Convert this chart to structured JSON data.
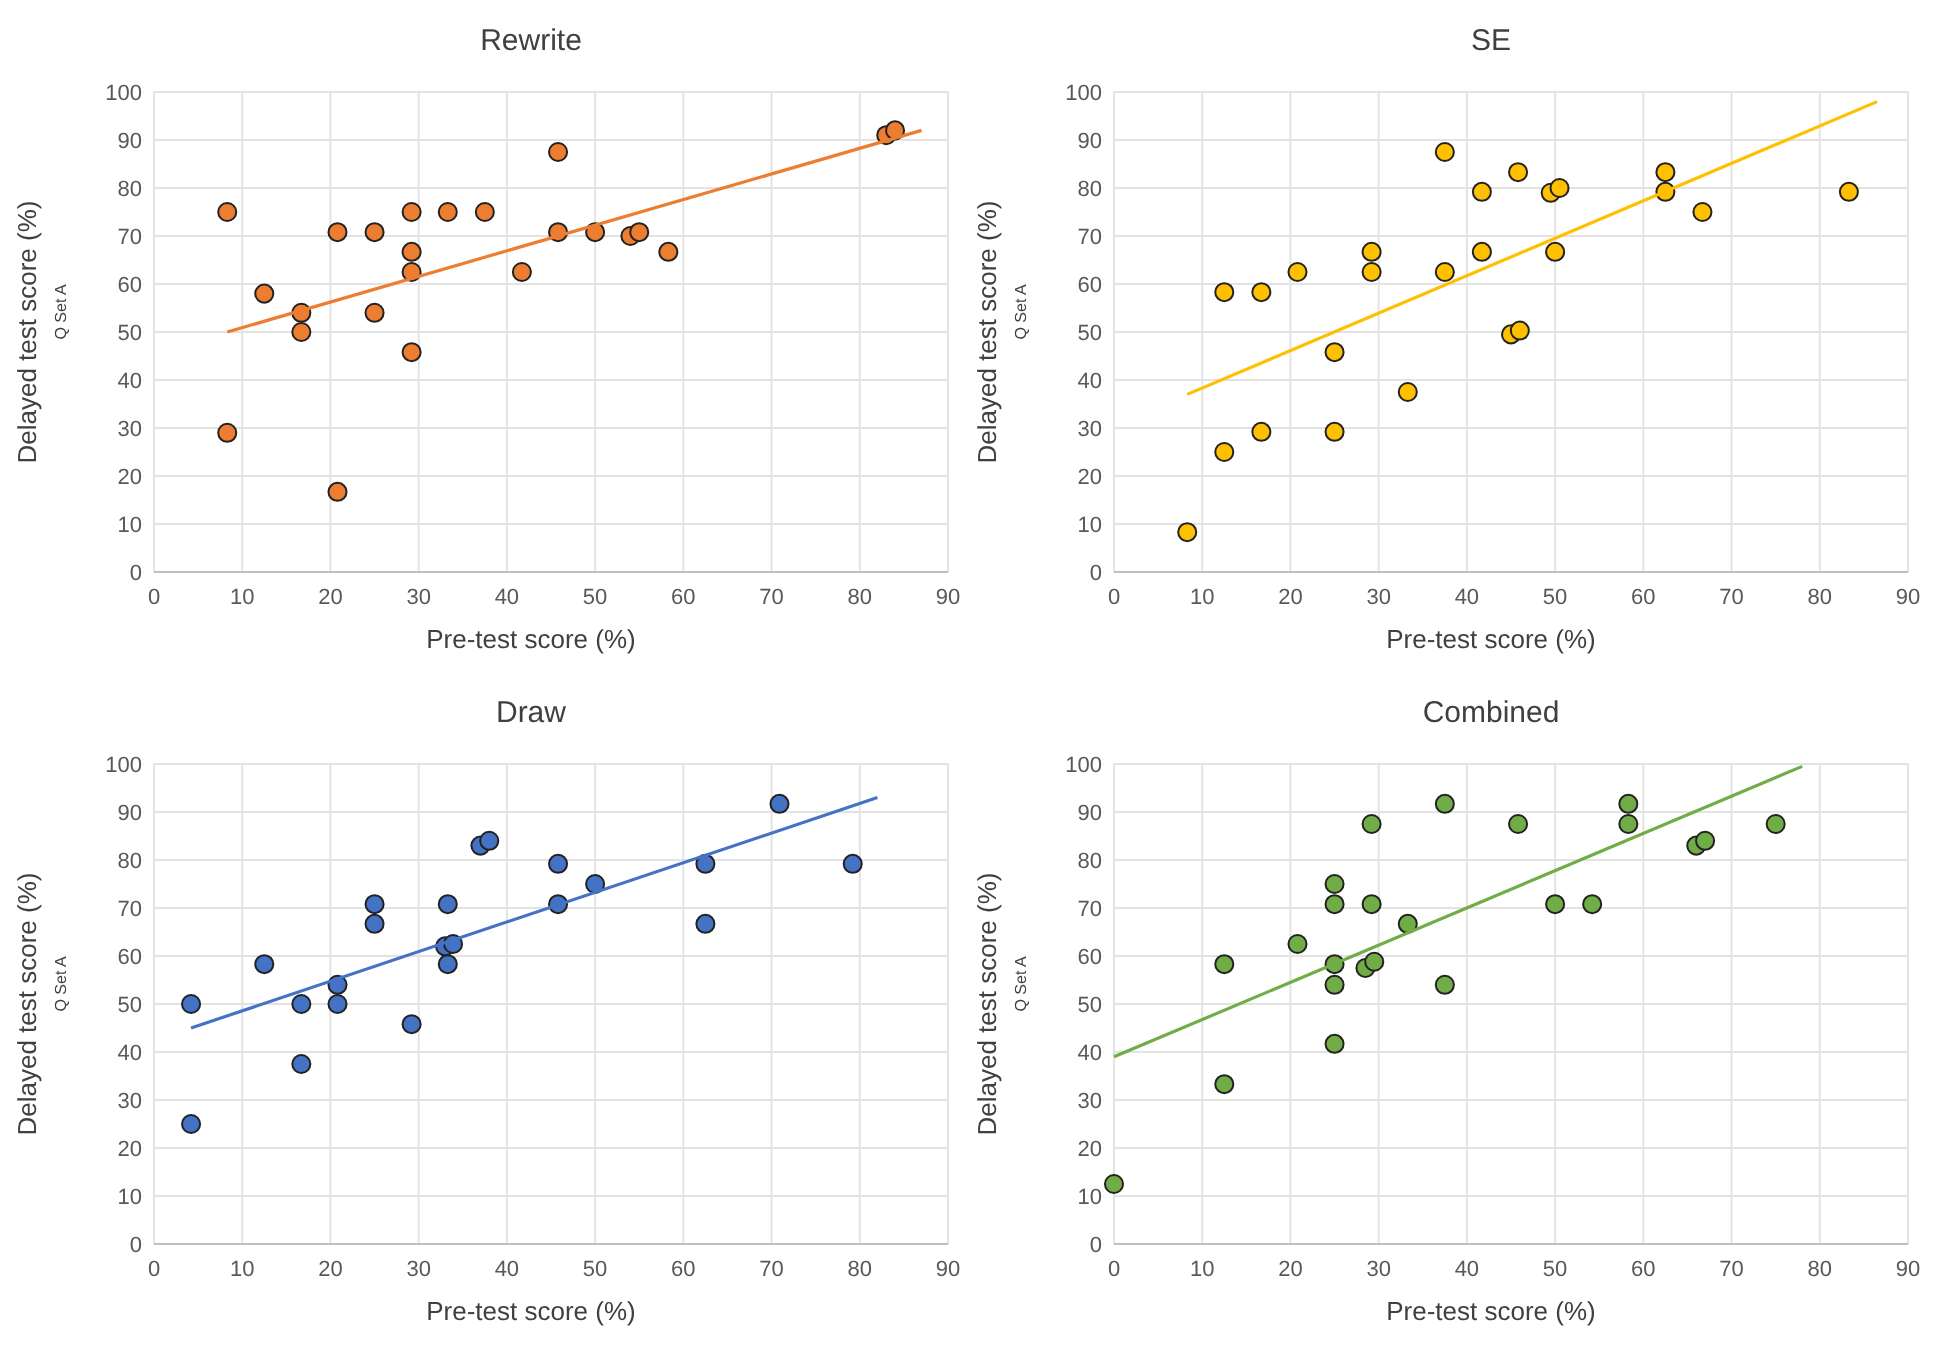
{
  "chart_data": [
    {
      "type": "scatter",
      "title": "Rewrite",
      "xlabel": "Pre-test score (%)",
      "ylabel": "Delayed test score (%)",
      "annotations": [
        "Q Set A"
      ],
      "xlim": [
        0,
        90
      ],
      "ylim": [
        0,
        100
      ],
      "xticks": [
        0,
        10,
        20,
        30,
        40,
        50,
        60,
        70,
        80,
        90
      ],
      "yticks": [
        0,
        10,
        20,
        30,
        40,
        50,
        60,
        70,
        80,
        90,
        100
      ],
      "grid": true,
      "series": [
        {
          "marker": "circle",
          "color": "#ed7d31",
          "x": [
            8.3,
            8.3,
            12.5,
            16.7,
            16.7,
            20.8,
            20.8,
            25,
            25,
            29.2,
            29.2,
            29.2,
            29.2,
            33.3,
            37.5,
            41.7,
            45.8,
            45.8,
            50,
            54,
            55,
            58.3,
            83,
            84
          ],
          "values": [
            75,
            29,
            58,
            54,
            50,
            70.8,
            16.7,
            70.8,
            54,
            75,
            66.7,
            62.5,
            45.8,
            75,
            75,
            62.5,
            87.5,
            70.8,
            70.8,
            70,
            70.8,
            66.7,
            91,
            92
          ]
        },
        {
          "type": "line",
          "color": "#ed7d31",
          "x": [
            8.3,
            87
          ],
          "values": [
            50,
            92
          ]
        }
      ]
    },
    {
      "type": "scatter",
      "title": "SE",
      "xlabel": "Pre-test score (%)",
      "ylabel": "Delayed test score (%)",
      "annotations": [
        "Q Set A"
      ],
      "xlim": [
        0,
        90
      ],
      "ylim": [
        0,
        100
      ],
      "xticks": [
        0,
        10,
        20,
        30,
        40,
        50,
        60,
        70,
        80,
        90
      ],
      "yticks": [
        0,
        10,
        20,
        30,
        40,
        50,
        60,
        70,
        80,
        90,
        100
      ],
      "grid": true,
      "series": [
        {
          "marker": "circle",
          "color": "#ffc000",
          "x": [
            8.3,
            12.5,
            12.5,
            16.7,
            16.7,
            20.8,
            25,
            25,
            29.2,
            29.2,
            33.3,
            37.5,
            37.5,
            41.7,
            41.7,
            45,
            45.8,
            46,
            49.5,
            50,
            50.5,
            62.5,
            62.5,
            66.7,
            83.3
          ],
          "values": [
            8.3,
            58.3,
            25,
            58.3,
            29.2,
            62.5,
            45.8,
            29.2,
            66.7,
            62.5,
            37.5,
            87.5,
            62.5,
            79.2,
            66.7,
            49.5,
            83.3,
            50.3,
            79,
            66.7,
            80,
            83.3,
            79.2,
            75,
            79.2
          ]
        },
        {
          "type": "line",
          "color": "#ffc000",
          "x": [
            8.3,
            86.5
          ],
          "values": [
            37,
            98
          ]
        }
      ]
    },
    {
      "type": "scatter",
      "title": "Draw",
      "xlabel": "Pre-test score (%)",
      "ylabel": "Delayed test score (%)",
      "annotations": [
        "Q Set A"
      ],
      "xlim": [
        0,
        90
      ],
      "ylim": [
        0,
        100
      ],
      "xticks": [
        0,
        10,
        20,
        30,
        40,
        50,
        60,
        70,
        80,
        90
      ],
      "yticks": [
        0,
        10,
        20,
        30,
        40,
        50,
        60,
        70,
        80,
        90,
        100
      ],
      "grid": true,
      "series": [
        {
          "marker": "circle",
          "color": "#4472c4",
          "x": [
            4.2,
            4.2,
            12.5,
            16.7,
            16.7,
            20.8,
            20.8,
            25,
            25,
            29.2,
            33,
            33.9,
            33.3,
            33.3,
            37,
            38,
            45.8,
            45.8,
            50,
            62.5,
            62.5,
            70.9,
            79.2
          ],
          "values": [
            50,
            25,
            58.3,
            50,
            37.5,
            54,
            50,
            70.8,
            66.7,
            45.8,
            62,
            62.5,
            70.8,
            58.3,
            83,
            84,
            79.2,
            70.8,
            75,
            79.2,
            66.7,
            91.7,
            79.2
          ]
        },
        {
          "type": "line",
          "color": "#4472c4",
          "x": [
            4.2,
            82
          ],
          "values": [
            45,
            93
          ]
        }
      ]
    },
    {
      "type": "scatter",
      "title": "Combined",
      "xlabel": "Pre-test score (%)",
      "ylabel": "Delayed test score (%)",
      "annotations": [
        "Q Set A"
      ],
      "xlim": [
        0,
        90
      ],
      "ylim": [
        0,
        100
      ],
      "xticks": [
        0,
        10,
        20,
        30,
        40,
        50,
        60,
        70,
        80,
        90
      ],
      "yticks": [
        0,
        10,
        20,
        30,
        40,
        50,
        60,
        70,
        80,
        90,
        100
      ],
      "grid": true,
      "series": [
        {
          "marker": "circle",
          "color": "#70ad47",
          "x": [
            0,
            12.5,
            12.5,
            20.8,
            25,
            25,
            25,
            25,
            25,
            29.2,
            29.2,
            28.5,
            29.5,
            33.3,
            37.5,
            37.5,
            45.8,
            50,
            54.2,
            58.3,
            58.3,
            66,
            67,
            75
          ],
          "values": [
            12.5,
            58.3,
            33.3,
            62.5,
            75,
            70.8,
            58.3,
            54,
            41.7,
            87.5,
            70.8,
            57.5,
            58.8,
            66.7,
            91.7,
            54,
            87.5,
            70.8,
            70.8,
            91.7,
            87.5,
            83,
            84,
            87.5
          ]
        },
        {
          "type": "line",
          "color": "#70ad47",
          "x": [
            0,
            78
          ],
          "values": [
            39,
            99.5
          ]
        }
      ]
    }
  ]
}
